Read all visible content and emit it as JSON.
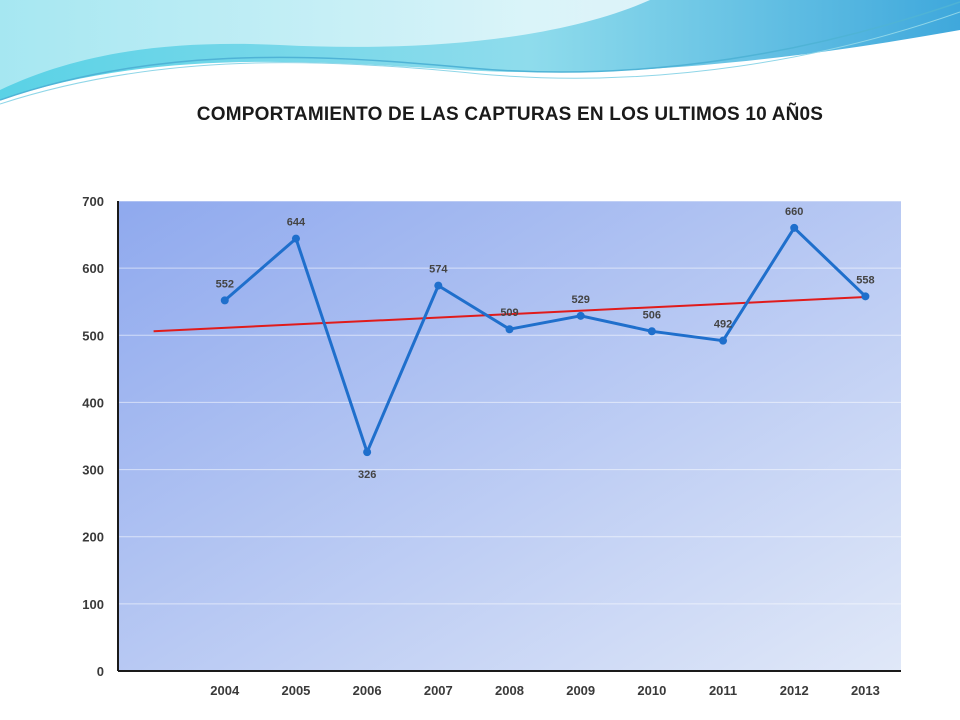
{
  "slide": {
    "title": "COMPORTAMIENTO DE LAS CAPTURAS EN LOS ULTIMOS 10 AÑ0S"
  },
  "colors": {
    "series_line": "#1f6fcc",
    "trendline": "#e01b1b",
    "plot_bg_start": "#8fa9ee",
    "plot_bg_end": "#e0e8f8",
    "axis": "#1a1a1a",
    "wave_teal": "#5fd0e0",
    "wave_blue": "#4aa6d9"
  },
  "chart_data": {
    "type": "line",
    "title": "COMPORTAMIENTO DE LAS CAPTURAS EN LOS ULTIMOS 10 AÑ0S",
    "categories": [
      "2004",
      "2005",
      "2006",
      "2007",
      "2008",
      "2009",
      "2010",
      "2011",
      "2012",
      "2013"
    ],
    "series": [
      {
        "values": [
          552,
          644,
          326,
          574,
          509,
          529,
          506,
          492,
          660,
          558
        ]
      }
    ],
    "data_labels": [
      "552",
      "644",
      "326",
      "574",
      "509",
      "529",
      "506",
      "492",
      "660",
      "558"
    ],
    "trendline": {
      "type": "linear",
      "start": 506,
      "end": 557
    },
    "yticks": [
      "0",
      "100",
      "200",
      "300",
      "400",
      "500",
      "600",
      "700"
    ],
    "ylim": [
      0,
      700
    ],
    "xlabel": "",
    "ylabel": "",
    "grid": true,
    "legend": "none"
  }
}
